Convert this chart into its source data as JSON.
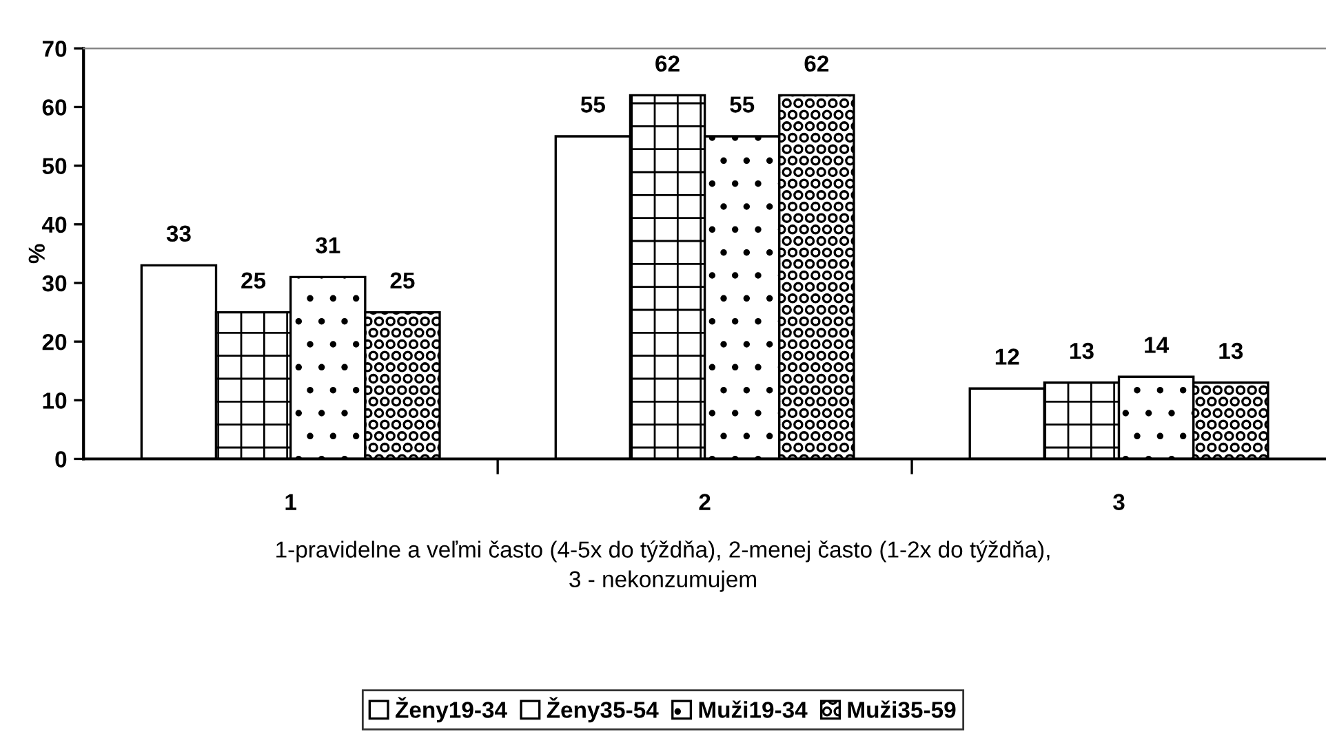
{
  "chart_data": {
    "type": "bar",
    "ylabel": "%",
    "xlabel": "1-pravidelne a veľmi často (4-5x do týždňa), 2-menej často (1-2x do týždňa),\n3 - nekonzumujem",
    "categories": [
      "1",
      "2",
      "3"
    ],
    "series": [
      {
        "name": "Ženy19-34",
        "color": "#ffffff",
        "values": [
          33,
          55,
          12
        ]
      },
      {
        "name": "Ženy35-54",
        "color": "#000000",
        "values": [
          25,
          62,
          13
        ]
      },
      {
        "name": "Muži19-34",
        "color": "#000000",
        "values": [
          31,
          55,
          14
        ]
      },
      {
        "name": "Muži35-59",
        "color": "#000000",
        "values": [
          25,
          62,
          13
        ]
      }
    ],
    "ylim": [
      0,
      70
    ],
    "yticks": [
      0,
      10,
      20,
      30,
      40,
      50,
      60,
      70
    ],
    "data_labels": true,
    "legend": "bottom",
    "grid": false
  }
}
